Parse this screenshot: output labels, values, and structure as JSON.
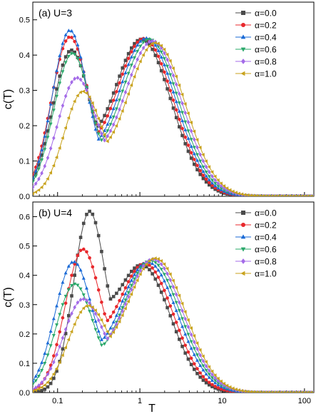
{
  "chart_data": [
    {
      "type": "line",
      "panel_label": "(a) U=3",
      "ylabel": "c(T)",
      "xlabel": "",
      "xscale": "log",
      "xlim": [
        0.05,
        130
      ],
      "ylim": [
        0,
        0.55
      ],
      "x_ticks": [
        0.1,
        1,
        10,
        100
      ],
      "x_tick_labels": [
        "",
        "",
        "",
        ""
      ],
      "y_ticks": [
        0.0,
        0.1,
        0.2,
        0.3,
        0.4,
        0.5
      ],
      "y_tick_labels": [
        "0.0",
        "0.1",
        "0.2",
        "0.3",
        "0.4",
        "0.5"
      ],
      "legend_placement": "top-right",
      "peaks": {
        "comment_free": true,
        "low_T": [
          0.145,
          0.14,
          0.14,
          0.15,
          0.17,
          0.2
        ],
        "low_h": [
          0.405,
          0.445,
          0.465,
          0.4,
          0.33,
          0.29
        ],
        "low_w": [
          0.4,
          0.4,
          0.38,
          0.4,
          0.42,
          0.4
        ],
        "high_T": [
          1.05,
          1.12,
          1.2,
          1.3,
          1.42,
          1.55
        ],
        "high_h": [
          0.445,
          0.447,
          0.448,
          0.445,
          0.44,
          0.435
        ],
        "high_w": [
          0.6,
          0.6,
          0.6,
          0.6,
          0.6,
          0.6
        ]
      },
      "series": [
        {
          "name": "α=0.0",
          "color": "#4a4a4a",
          "marker": "square"
        },
        {
          "name": "α=0.2",
          "color": "#e8282c",
          "marker": "circle"
        },
        {
          "name": "α=0.4",
          "color": "#1a6ad6",
          "marker": "triangle-up"
        },
        {
          "name": "α=0.6",
          "color": "#2aa86a",
          "marker": "triangle-down"
        },
        {
          "name": "α=0.8",
          "color": "#a46be8",
          "marker": "diamond"
        },
        {
          "name": "α=1.0",
          "color": "#c8a21c",
          "marker": "triangle-left"
        }
      ]
    },
    {
      "type": "line",
      "panel_label": "(b) U=4",
      "ylabel": "c(T)",
      "xlabel": "T",
      "xscale": "log",
      "xlim": [
        0.05,
        130
      ],
      "ylim": [
        0,
        0.65
      ],
      "x_ticks": [
        0.1,
        1,
        10,
        100
      ],
      "x_tick_labels": [
        "0.1",
        "1",
        "10",
        "100"
      ],
      "y_ticks": [
        0.0,
        0.1,
        0.2,
        0.3,
        0.4,
        0.5,
        0.6
      ],
      "y_tick_labels": [
        "0.0",
        "0.1",
        "0.2",
        "0.3",
        "0.4",
        "0.5",
        "0.6"
      ],
      "legend_placement": "top-right",
      "peaks": {
        "low_T": [
          0.24,
          0.2,
          0.155,
          0.16,
          0.2,
          0.23
        ],
        "low_h": [
          0.59,
          0.475,
          0.44,
          0.365,
          0.31,
          0.285
        ],
        "low_w": [
          0.34,
          0.38,
          0.4,
          0.4,
          0.42,
          0.42
        ],
        "high_T": [
          1.05,
          1.15,
          1.25,
          1.35,
          1.45,
          1.55
        ],
        "high_h": [
          0.435,
          0.44,
          0.445,
          0.45,
          0.455,
          0.458
        ],
        "high_w": [
          0.58,
          0.58,
          0.6,
          0.6,
          0.6,
          0.6
        ]
      },
      "series": [
        {
          "name": "α=0.0",
          "color": "#4a4a4a",
          "marker": "square"
        },
        {
          "name": "α=0.2",
          "color": "#e8282c",
          "marker": "circle"
        },
        {
          "name": "α=0.4",
          "color": "#1a6ad6",
          "marker": "triangle-up"
        },
        {
          "name": "α=0.6",
          "color": "#2aa86a",
          "marker": "triangle-down"
        },
        {
          "name": "α=0.8",
          "color": "#a46be8",
          "marker": "diamond"
        },
        {
          "name": "α=1.0",
          "color": "#c8a21c",
          "marker": "triangle-left"
        }
      ]
    }
  ]
}
